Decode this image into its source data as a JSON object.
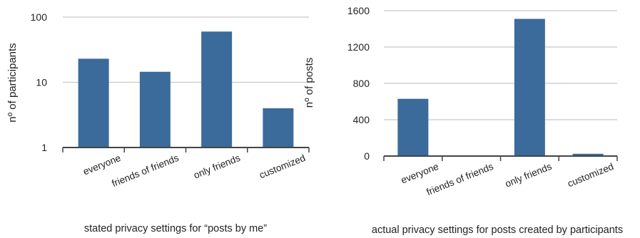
{
  "chart_data": [
    {
      "type": "bar",
      "title": "",
      "xlabel": "stated privacy settings for “posts by me”",
      "ylabel": "nº of participants",
      "yscale": "log",
      "ylim": [
        1,
        100
      ],
      "yticks": [
        "1",
        "10",
        "100"
      ],
      "grid": true,
      "categories": [
        "everyone",
        "friends of friends",
        "only friends",
        "customized"
      ],
      "values": [
        23,
        14.5,
        60,
        4
      ],
      "bar_color": "#3b6b9b"
    },
    {
      "type": "bar",
      "title": "",
      "xlabel": "actual privacy settings for posts created by participants",
      "ylabel": "nº of posts",
      "yscale": "linear",
      "ylim": [
        0,
        1600
      ],
      "yticks": [
        "0",
        "400",
        "800",
        "1200",
        "1600"
      ],
      "grid": true,
      "categories": [
        "everyone",
        "friends of friends",
        "only friends",
        "customized"
      ],
      "values": [
        630,
        0,
        1510,
        25
      ],
      "bar_color": "#3b6b9b"
    }
  ]
}
